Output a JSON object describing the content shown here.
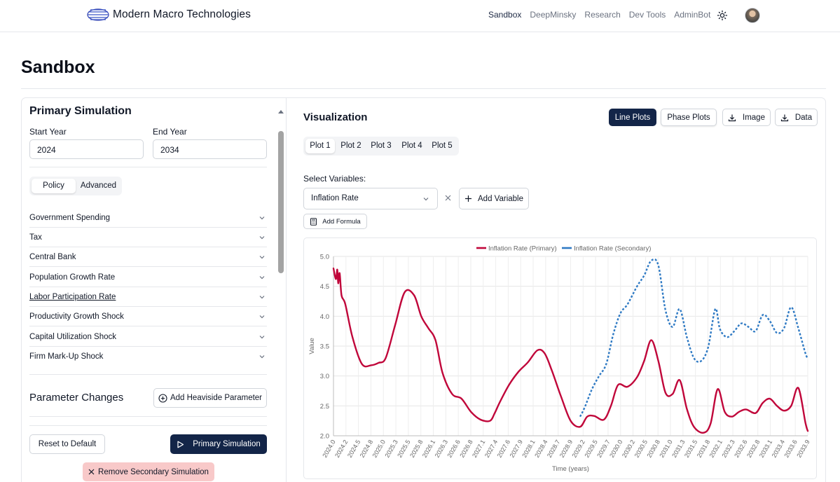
{
  "nav": {
    "brand": "Modern Macro Technologies",
    "links": [
      "Sandbox",
      "DeepMinsky",
      "Research",
      "Dev Tools",
      "AdminBot"
    ],
    "active_link": "Sandbox"
  },
  "page": {
    "title": "Sandbox"
  },
  "primary_simulation": {
    "title": "Primary Simulation",
    "start_year_label": "Start Year",
    "start_year": "2024",
    "end_year_label": "End Year",
    "end_year": "2034",
    "tabs": [
      "Policy",
      "Advanced"
    ],
    "active_tab": "Policy",
    "sections": [
      "Government Spending",
      "Tax",
      "Central Bank",
      "Population Growth Rate",
      "Labor Participation Rate",
      "Productivity Growth Shock",
      "Capital Utilization Shock",
      "Firm Mark-Up Shock"
    ],
    "parameter_changes_title": "Parameter Changes",
    "add_heaviside_label": "Add Heaviside Parameter",
    "reset_label": "Reset to Default",
    "run_primary_label": "Primary Simulation",
    "remove_secondary_label": "Remove Secondary Simulation"
  },
  "visualization": {
    "title": "Visualization",
    "view_buttons": [
      "Line Plots",
      "Phase Plots"
    ],
    "active_view": "Line Plots",
    "image_label": "Image",
    "data_label": "Data",
    "plot_tabs": [
      "Plot 1",
      "Plot 2",
      "Plot 3",
      "Plot 4",
      "Plot 5"
    ],
    "active_plot": "Plot 1",
    "select_variables_label": "Select Variables:",
    "selected_variable": "Inflation Rate",
    "add_variable_label": "Add Variable",
    "add_formula_label": "Add Formula"
  },
  "colors": {
    "primary_series": "#c0063a",
    "secondary_series": "#2f7ac4",
    "dark_button": "#132548"
  },
  "chart_data": {
    "type": "line",
    "title": "",
    "xlabel": "Time (years)",
    "ylabel": "Value",
    "ylim": [
      2.0,
      5.0
    ],
    "xlim": [
      2024.0,
      2034.0
    ],
    "yticks": [
      "2.0",
      "2.5",
      "3.0",
      "3.5",
      "4.0",
      "4.5",
      "5.0"
    ],
    "xticks": [
      "2024.0",
      "2024.2",
      "2024.5",
      "2024.8",
      "2025.0",
      "2025.3",
      "2025.5",
      "2025.8",
      "2026.1",
      "2026.3",
      "2026.6",
      "2026.8",
      "2027.1",
      "2027.4",
      "2027.6",
      "2027.9",
      "2028.1",
      "2028.4",
      "2028.7",
      "2028.9",
      "2029.2",
      "2029.5",
      "2029.7",
      "2030.0",
      "2030.2",
      "2030.5",
      "2030.8",
      "2031.0",
      "2031.3",
      "2031.5",
      "2031.8",
      "2032.1",
      "2032.3",
      "2032.6",
      "2032.8",
      "2033.1",
      "2033.4",
      "2033.6",
      "2033.9"
    ],
    "legend_position": "top-center",
    "grid": true,
    "series": [
      {
        "name": "Inflation Rate (Primary)",
        "style": "solid",
        "x": [
          2024.0,
          2024.05,
          2024.08,
          2024.1,
          2024.13,
          2024.17,
          2024.25,
          2024.4,
          2024.6,
          2024.8,
          2024.95,
          2025.1,
          2025.3,
          2025.5,
          2025.7,
          2025.85,
          2026.0,
          2026.15,
          2026.3,
          2026.5,
          2026.7,
          2026.9,
          2027.1,
          2027.3,
          2027.4,
          2027.5,
          2027.7,
          2027.9,
          2028.1,
          2028.3,
          2028.45,
          2028.6,
          2028.8,
          2029.0,
          2029.2,
          2029.35,
          2029.5,
          2029.7,
          2029.85,
          2030.0,
          2030.2,
          2030.4,
          2030.55,
          2030.7,
          2030.85,
          2031.0,
          2031.15,
          2031.3,
          2031.45,
          2031.6,
          2031.8,
          2031.95,
          2032.1,
          2032.25,
          2032.4,
          2032.55,
          2032.7,
          2032.9,
          2033.05,
          2033.2,
          2033.35,
          2033.5,
          2033.65,
          2033.8,
          2033.95,
          2034.0
        ],
        "y": [
          4.8,
          4.62,
          4.78,
          4.55,
          4.72,
          4.35,
          4.2,
          3.65,
          3.2,
          3.18,
          3.22,
          3.3,
          3.85,
          4.4,
          4.35,
          4.0,
          3.8,
          3.6,
          3.05,
          2.7,
          2.62,
          2.4,
          2.27,
          2.25,
          2.38,
          2.55,
          2.85,
          3.07,
          3.23,
          3.43,
          3.38,
          3.1,
          2.65,
          2.25,
          2.15,
          2.32,
          2.33,
          2.27,
          2.5,
          2.85,
          2.82,
          2.98,
          3.25,
          3.6,
          3.25,
          2.72,
          2.7,
          2.93,
          2.45,
          2.15,
          2.05,
          2.2,
          2.78,
          2.4,
          2.32,
          2.4,
          2.44,
          2.38,
          2.55,
          2.62,
          2.5,
          2.42,
          2.5,
          2.8,
          2.22,
          2.08
        ]
      },
      {
        "name": "Inflation Rate (Secondary)",
        "style": "dashed",
        "x": [
          2029.2,
          2029.3,
          2029.45,
          2029.6,
          2029.75,
          2029.9,
          2030.05,
          2030.2,
          2030.4,
          2030.55,
          2030.7,
          2030.85,
          2031.0,
          2031.15,
          2031.3,
          2031.45,
          2031.6,
          2031.75,
          2031.9,
          2032.05,
          2032.15,
          2032.3,
          2032.45,
          2032.6,
          2032.75,
          2032.9,
          2033.05,
          2033.2,
          2033.35,
          2033.5,
          2033.65,
          2033.8,
          2033.95,
          2034.0
        ],
        "y": [
          2.32,
          2.48,
          2.78,
          3.0,
          3.2,
          3.7,
          4.05,
          4.2,
          4.5,
          4.68,
          4.93,
          4.85,
          4.1,
          3.82,
          4.12,
          3.65,
          3.3,
          3.25,
          3.48,
          4.12,
          3.78,
          3.65,
          3.75,
          3.88,
          3.82,
          3.75,
          4.02,
          3.92,
          3.72,
          3.8,
          4.15,
          3.8,
          3.38,
          3.3
        ]
      }
    ]
  }
}
